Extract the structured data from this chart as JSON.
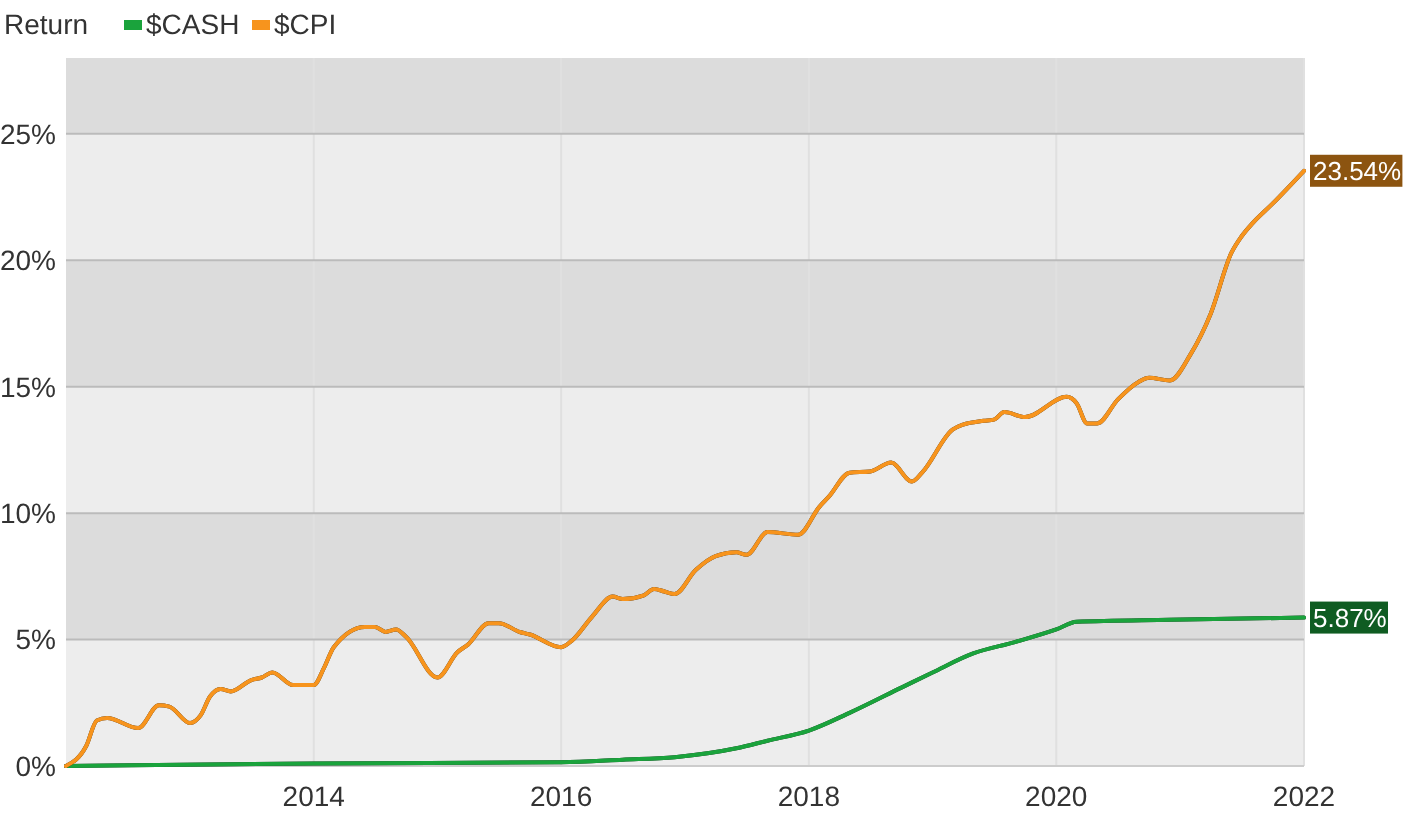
{
  "chart_data": {
    "type": "line",
    "legend_title": "Return",
    "legend": "top left",
    "grid": true,
    "xlim": [
      "2012-01",
      "2022-01"
    ],
    "xticks": [
      "2014",
      "2016",
      "2018",
      "2020",
      "2022"
    ],
    "ylim": [
      0,
      28
    ],
    "yticks": [
      {
        "value": 0,
        "label": "0%"
      },
      {
        "value": 5,
        "label": "5%"
      },
      {
        "value": 10,
        "label": "10%"
      },
      {
        "value": 15,
        "label": "15%"
      },
      {
        "value": 20,
        "label": "20%"
      },
      {
        "value": 25,
        "label": "25%"
      }
    ],
    "series": [
      {
        "name": "$CASH",
        "color": "#1aa33c",
        "x": [
          "2012-01",
          "2014-01",
          "2016-01",
          "2016-07",
          "2016-12",
          "2017-06",
          "2017-09",
          "2018-01",
          "2018-05",
          "2018-10",
          "2019-01",
          "2019-05",
          "2019-09",
          "2020-01",
          "2020-03",
          "2020-12",
          "2022-01"
        ],
        "values": [
          0,
          0.1,
          0.15,
          0.25,
          0.35,
          0.7,
          1.0,
          1.4,
          2.1,
          3.1,
          3.7,
          4.45,
          4.9,
          5.4,
          5.7,
          5.78,
          5.87
        ]
      },
      {
        "name": "$CPI",
        "color": "#f7941d",
        "x": [
          "2012-01",
          "2012-03",
          "2012-04",
          "2012-05",
          "2012-08",
          "2012-10",
          "2012-11",
          "2013-01",
          "2013-02",
          "2013-03",
          "2013-04",
          "2013-05",
          "2013-07",
          "2013-08",
          "2013-09",
          "2013-11",
          "2014-01",
          "2014-02",
          "2014-03",
          "2014-06",
          "2014-07",
          "2014-08",
          "2014-09",
          "2014-10",
          "2015-01",
          "2015-03",
          "2015-04",
          "2015-06",
          "2015-07",
          "2015-09",
          "2015-10",
          "2016-01",
          "2016-02",
          "2016-04",
          "2016-06",
          "2016-07",
          "2016-09",
          "2016-10",
          "2016-11",
          "2016-12",
          "2017-02",
          "2017-04",
          "2017-06",
          "2017-07",
          "2017-09",
          "2017-12",
          "2018-02",
          "2018-03",
          "2018-05",
          "2018-07",
          "2018-09",
          "2018-11",
          "2018-12",
          "2019-03",
          "2019-04",
          "2019-06",
          "2019-07",
          "2019-08",
          "2019-10",
          "2020-02",
          "2020-03",
          "2020-04",
          "2020-05",
          "2020-07",
          "2020-09",
          "2020-10",
          "2020-12",
          "2021-02",
          "2021-04",
          "2021-06",
          "2021-07",
          "2021-08",
          "2021-10",
          "2022-01"
        ],
        "values": [
          0,
          0.8,
          1.8,
          1.9,
          1.5,
          2.4,
          2.35,
          1.7,
          2.0,
          2.75,
          3.05,
          2.95,
          3.4,
          3.5,
          3.7,
          3.2,
          3.2,
          3.9,
          4.7,
          5.5,
          5.5,
          5.3,
          5.4,
          5.1,
          3.5,
          4.5,
          4.8,
          5.65,
          5.65,
          5.3,
          5.2,
          4.7,
          4.95,
          5.9,
          6.7,
          6.6,
          6.75,
          7.0,
          6.9,
          6.8,
          7.75,
          8.3,
          8.45,
          8.35,
          9.25,
          9.15,
          10.25,
          10.65,
          11.6,
          11.65,
          12.0,
          11.25,
          11.6,
          13.3,
          13.5,
          13.65,
          13.7,
          14.0,
          13.8,
          14.6,
          14.35,
          13.55,
          13.55,
          14.5,
          15.2,
          15.35,
          15.25,
          16.3,
          17.9,
          20.3,
          20.95,
          21.45,
          22.25,
          23.54
        ]
      }
    ],
    "annotations": [
      {
        "text": "23.54%",
        "x": "2022-01",
        "y": 23.54
      },
      {
        "text": "5.87%",
        "x": "2022-01",
        "y": 5.87
      }
    ]
  }
}
